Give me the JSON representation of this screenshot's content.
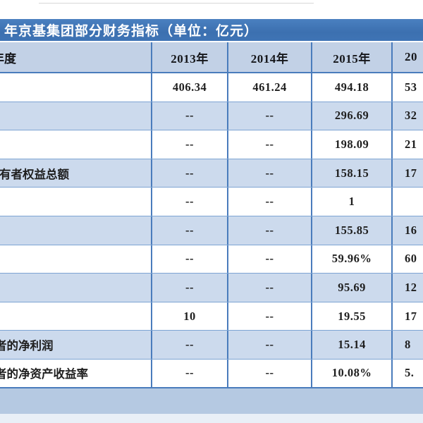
{
  "page": {
    "title": "年京基集团部分财务指标（单位：亿元）"
  },
  "table": {
    "header": {
      "label": "年度",
      "col_2013": "2013年",
      "col_2014": "2014年",
      "col_2015": "2015年",
      "col_2016_partial": "20"
    },
    "rows": [
      {
        "label": "",
        "values": [
          "406.34",
          "461.24",
          "494.18",
          "53"
        ]
      },
      {
        "label": "",
        "values": [
          "--",
          "--",
          "296.69",
          "32"
        ]
      },
      {
        "label": "",
        "values": [
          "--",
          "--",
          "198.09",
          "21"
        ]
      },
      {
        "label": "有者权益总额",
        "values": [
          "--",
          "--",
          "158.15",
          "17"
        ]
      },
      {
        "label": "",
        "values": [
          "--",
          "--",
          "1",
          ""
        ]
      },
      {
        "label": "",
        "values": [
          "--",
          "--",
          "155.85",
          "16"
        ]
      },
      {
        "label": "",
        "values": [
          "--",
          "--",
          "59.96%",
          "60"
        ]
      },
      {
        "label": "",
        "values": [
          "--",
          "--",
          "95.69",
          "12"
        ]
      },
      {
        "label": "",
        "values": [
          "10",
          "--",
          "19.55",
          "17"
        ]
      },
      {
        "label": "者的净利润",
        "values": [
          "--",
          "--",
          "15.14",
          "8"
        ]
      },
      {
        "label": "者的净资产收益率",
        "values": [
          "--",
          "--",
          "10.08%",
          "5."
        ]
      }
    ]
  },
  "colors": {
    "title_bar": "#3f74b5",
    "header_bg": "#c2d1e6",
    "band_row_bg": "#ccdaed",
    "grid_line": "#4a7cbc",
    "row_line": "#7da4d3",
    "footer_band": "#b5c9e2"
  }
}
